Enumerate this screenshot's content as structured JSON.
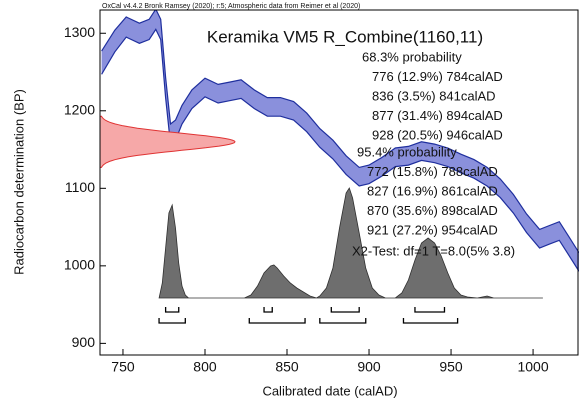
{
  "chart_data": {
    "type": "calibration",
    "header": "OxCal v4.4.2 Bronk Ramsey (2020); r:5; Atmospheric data from Reimer et al (2020)",
    "title": "Keramika VM5 R_Combine(1160,11)",
    "x_label": "Calibrated date (calAD)",
    "y_label": "Radiocarbon determination (BP)",
    "xlim": [
      736,
      1028
    ],
    "ylim": [
      885,
      1330
    ],
    "xticks": [
      750,
      800,
      850,
      900,
      950,
      1000
    ],
    "yticks": [
      900,
      1000,
      1100,
      1200,
      1300
    ],
    "grid": false,
    "curve": {
      "color": "#8a90dc",
      "edge_color": "#1f2f9e",
      "x": [
        737,
        745,
        752,
        760,
        766,
        770,
        773,
        776,
        779,
        782,
        786,
        792,
        800,
        808,
        815,
        822,
        830,
        838,
        846,
        854,
        862,
        870,
        878,
        886,
        894,
        900,
        908,
        916,
        924,
        932,
        940,
        948,
        956,
        964,
        972,
        980,
        988,
        996,
        1004,
        1010,
        1016,
        1022,
        1028
      ],
      "upper": [
        1277,
        1304,
        1321,
        1313,
        1318,
        1331,
        1318,
        1243,
        1183,
        1188,
        1207,
        1227,
        1242,
        1234,
        1237,
        1240,
        1227,
        1217,
        1217,
        1212,
        1197,
        1177,
        1162,
        1142,
        1127,
        1130,
        1140,
        1152,
        1154,
        1160,
        1157,
        1152,
        1144,
        1137,
        1127,
        1112,
        1092,
        1067,
        1047,
        1052,
        1057,
        1037,
        1017
      ],
      "lower": [
        1247,
        1276,
        1295,
        1287,
        1292,
        1305,
        1292,
        1217,
        1157,
        1162,
        1183,
        1203,
        1218,
        1210,
        1213,
        1216,
        1203,
        1193,
        1193,
        1188,
        1173,
        1153,
        1138,
        1118,
        1103,
        1106,
        1116,
        1128,
        1130,
        1136,
        1133,
        1128,
        1120,
        1113,
        1103,
        1088,
        1068,
        1043,
        1023,
        1028,
        1033,
        1013,
        993
      ]
    },
    "likelihood": {
      "mean": 1160,
      "sigma": 11,
      "color": "#f6a8a8",
      "edge_color": "#e03333"
    },
    "posterior": {
      "color": "#6e6e6e",
      "edge_color": "#303030",
      "x": [
        772,
        774,
        776,
        778,
        780,
        782,
        784,
        786,
        788,
        790,
        824,
        828,
        832,
        836,
        840,
        842,
        844,
        848,
        852,
        856,
        860,
        864,
        868,
        870,
        874,
        878,
        882,
        886,
        888,
        890,
        894,
        898,
        902,
        906,
        910,
        916,
        920,
        924,
        928,
        932,
        936,
        940,
        944,
        948,
        952,
        956,
        960,
        966,
        972,
        976,
        1006
      ],
      "values": [
        0,
        15,
        50,
        85,
        93,
        70,
        35,
        12,
        3,
        0,
        0,
        3,
        12,
        25,
        32,
        33,
        30,
        22,
        15,
        10,
        6,
        2,
        0,
        2,
        10,
        30,
        70,
        105,
        110,
        100,
        65,
        30,
        10,
        3,
        0,
        0,
        5,
        18,
        38,
        55,
        60,
        55,
        42,
        25,
        10,
        3,
        1,
        0,
        2,
        0,
        0
      ]
    },
    "ranges_68": {
      "heading": "68.3% probability",
      "items": [
        {
          "from": 776,
          "to": 784,
          "label": "776 (12.9%) 784calAD"
        },
        {
          "from": 836,
          "to": 841,
          "label": "836 (3.5%) 841calAD"
        },
        {
          "from": 877,
          "to": 894,
          "label": "877 (31.4%) 894calAD"
        },
        {
          "from": 928,
          "to": 946,
          "label": "928 (20.5%) 946calAD"
        }
      ]
    },
    "ranges_95": {
      "heading": "95.4% probability",
      "items": [
        {
          "from": 772,
          "to": 788,
          "label": "772 (15.8%) 788calAD"
        },
        {
          "from": 827,
          "to": 861,
          "label": "827 (16.9%) 861calAD"
        },
        {
          "from": 870,
          "to": 898,
          "label": "870 (35.6%) 898calAD"
        },
        {
          "from": 921,
          "to": 954,
          "label": "921 (27.2%) 954calAD"
        }
      ]
    },
    "test": "X2-Test: df=1 T=8.0(5% 3.8)"
  }
}
